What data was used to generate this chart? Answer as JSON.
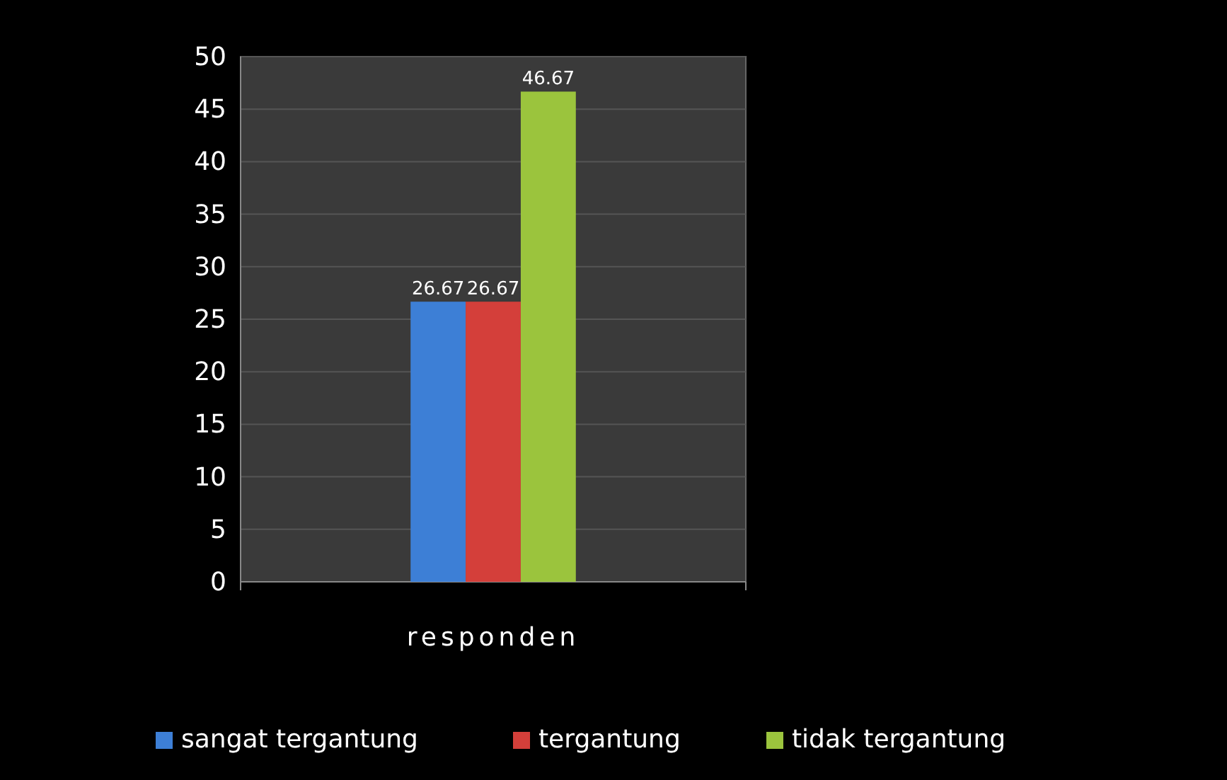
{
  "chart_data": {
    "type": "bar",
    "categories": [
      "responden"
    ],
    "series": [
      {
        "name": "sangat tergantung",
        "color": "#3d7fd6",
        "values": [
          26.67
        ]
      },
      {
        "name": "tergantung",
        "color": "#d43f3a",
        "values": [
          26.67
        ]
      },
      {
        "name": "tidak tergantung",
        "color": "#9bc43d",
        "values": [
          46.67
        ]
      }
    ],
    "ylim": [
      0,
      50
    ],
    "yticks": [
      0,
      5,
      10,
      15,
      20,
      25,
      30,
      35,
      40,
      45,
      50
    ],
    "grid": "y",
    "legend": "bottom",
    "data_labels": true
  }
}
